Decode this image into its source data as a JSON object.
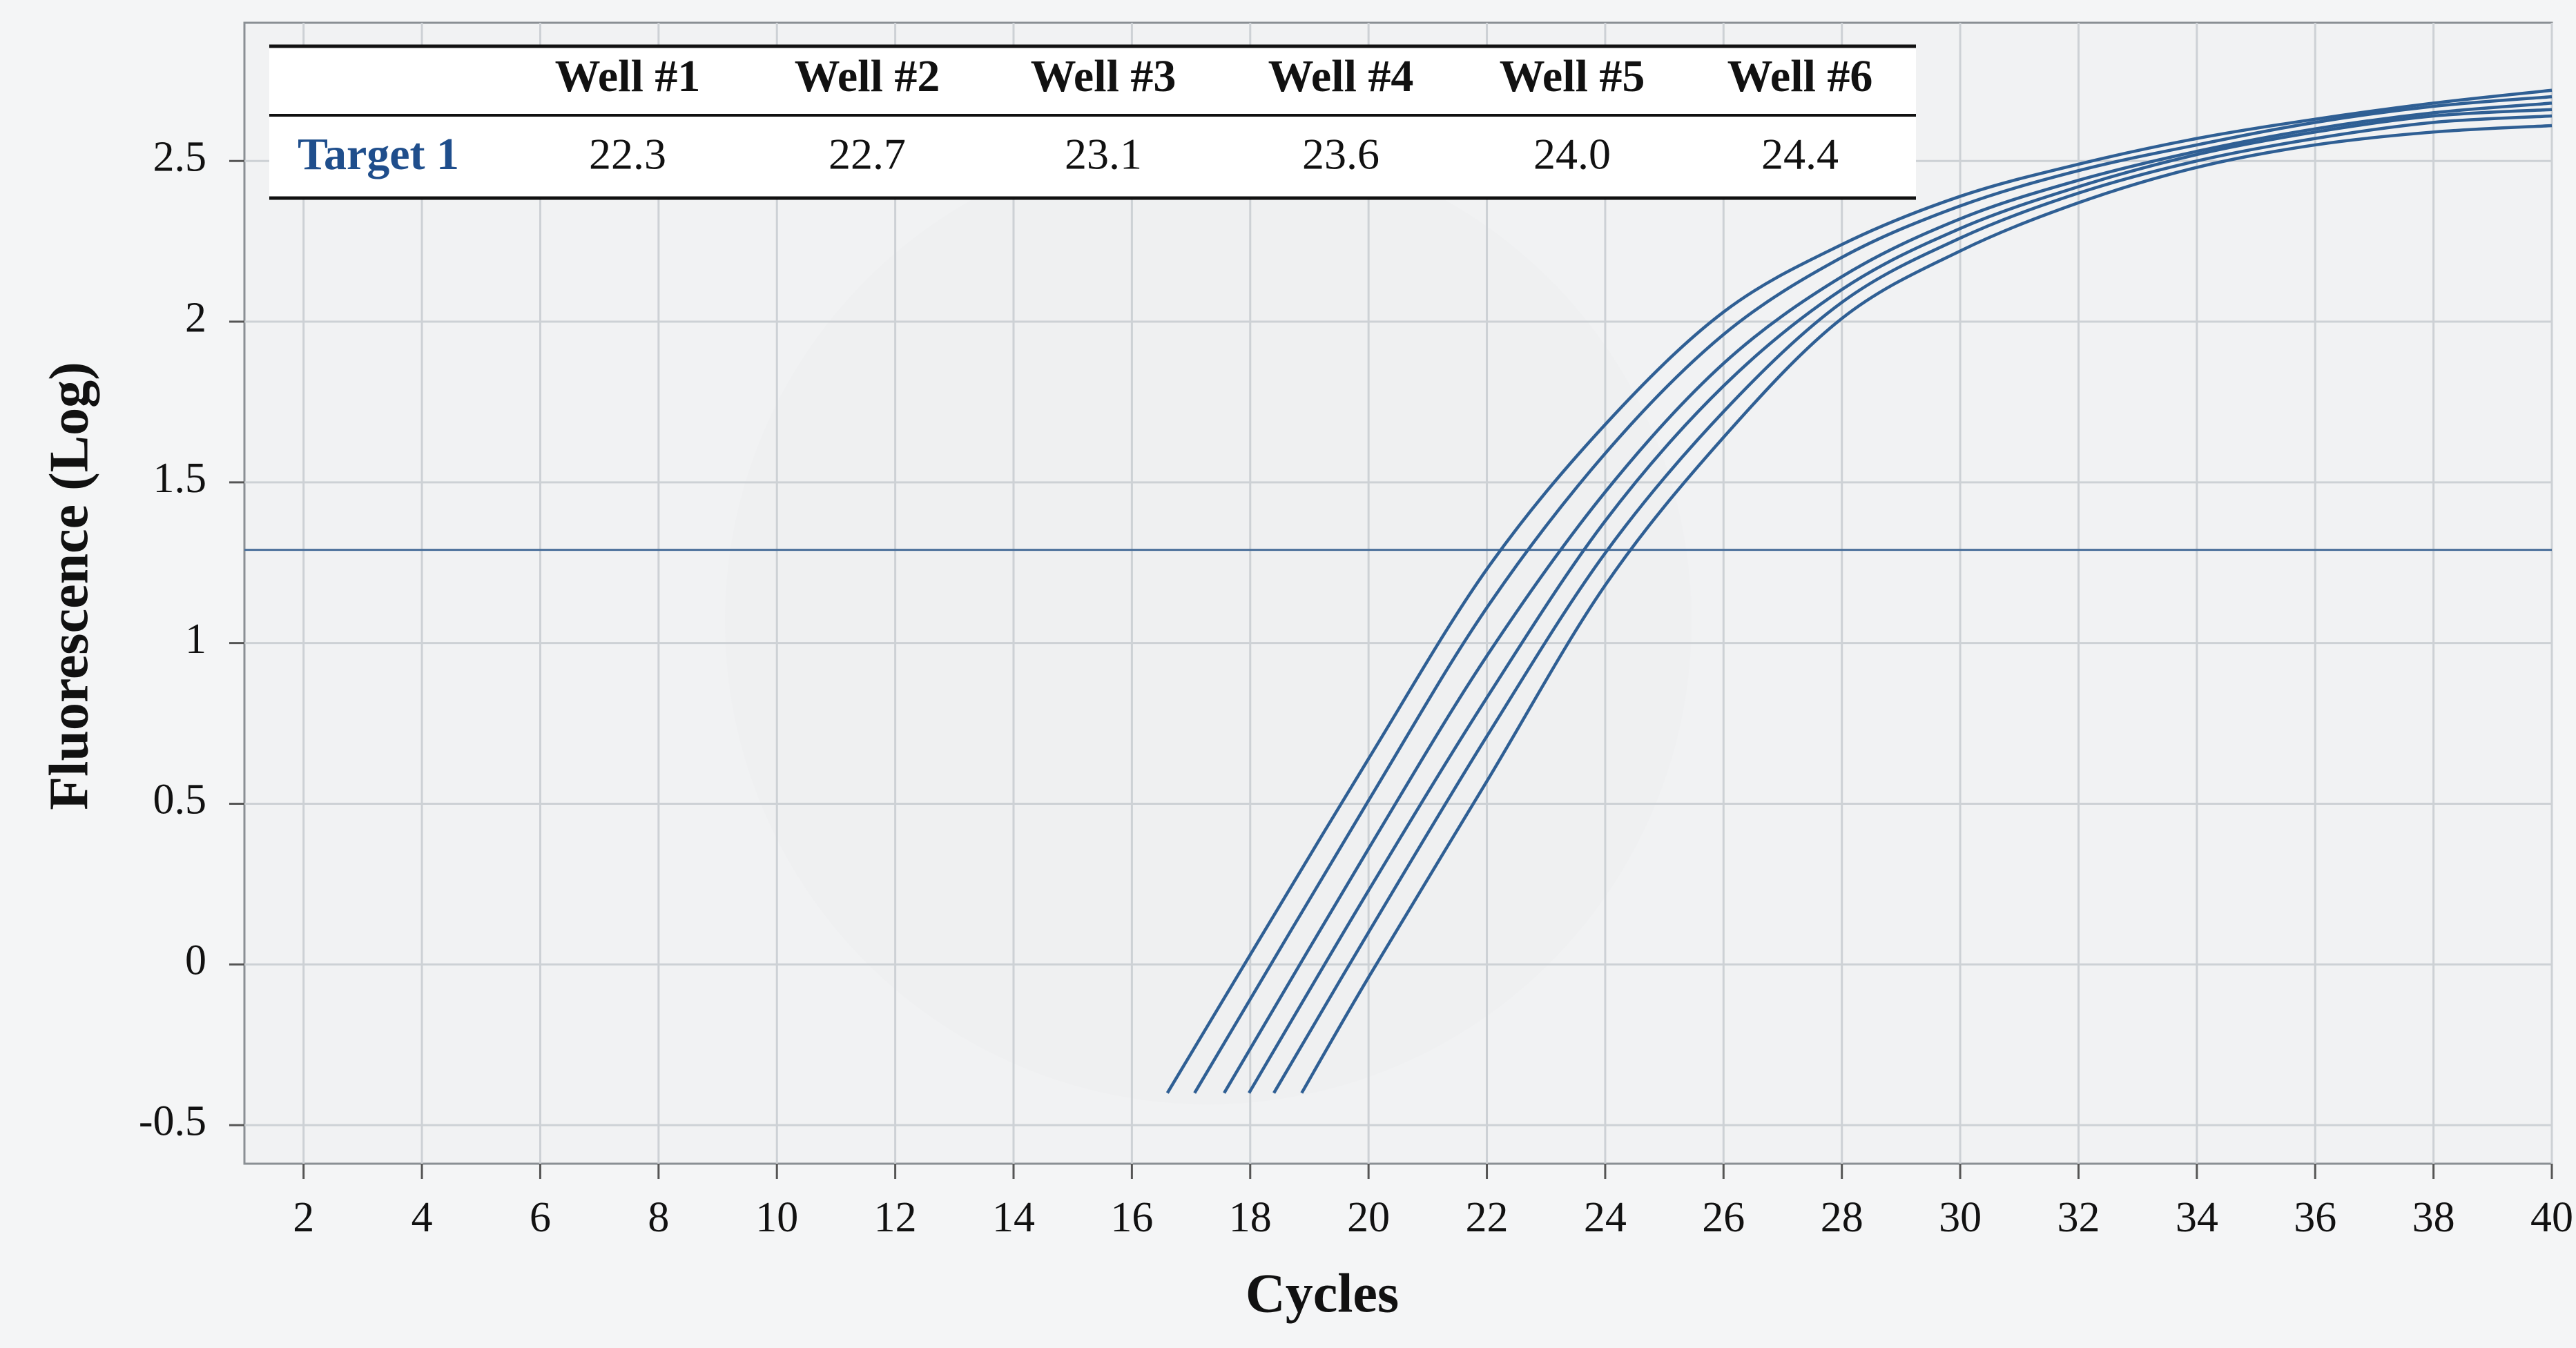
{
  "chart_data": {
    "type": "line",
    "x_label": "Cycles",
    "y_label": "Fluorescence (Log)",
    "xlim": [
      1,
      40
    ],
    "ylim": [
      -0.62,
      2.93
    ],
    "xticks": [
      2,
      4,
      6,
      8,
      10,
      12,
      14,
      16,
      18,
      20,
      22,
      24,
      26,
      28,
      30,
      32,
      34,
      36,
      38,
      40
    ],
    "yticks": [
      -0.5,
      0,
      0.5,
      1,
      1.5,
      2,
      2.5
    ],
    "grid": true,
    "threshold": 1.29,
    "threshold_color": "#4a6f9a",
    "series": [
      {
        "color": "#2f5f94",
        "x": [
          16.6,
          18,
          20,
          22,
          24,
          26,
          28,
          30,
          32,
          34,
          36,
          38,
          40
        ],
        "values": [
          -0.4,
          0.03,
          0.64,
          1.23,
          1.68,
          2.03,
          2.24,
          2.39,
          2.49,
          2.57,
          2.63,
          2.68,
          2.72
        ]
      },
      {
        "color": "#2f5f94",
        "x": [
          17.06,
          20,
          22,
          24,
          26,
          28,
          30,
          32,
          34,
          36,
          38,
          40
        ],
        "values": [
          -0.4,
          0.51,
          1.11,
          1.59,
          1.96,
          2.2,
          2.36,
          2.47,
          2.55,
          2.62,
          2.67,
          2.7
        ]
      },
      {
        "color": "#2f5f94",
        "x": [
          17.56,
          20,
          22,
          24,
          26,
          28,
          30,
          32,
          34,
          36,
          38,
          40
        ],
        "values": [
          -0.4,
          0.36,
          0.96,
          1.47,
          1.87,
          2.14,
          2.32,
          2.44,
          2.53,
          2.6,
          2.65,
          2.68
        ]
      },
      {
        "color": "#2f5f94",
        "x": [
          17.98,
          20,
          22,
          24,
          26,
          28,
          30,
          32,
          34,
          36,
          38,
          40
        ],
        "values": [
          -0.4,
          0.23,
          0.83,
          1.38,
          1.8,
          2.1,
          2.29,
          2.42,
          2.52,
          2.59,
          2.64,
          2.66
        ]
      },
      {
        "color": "#2f5f94",
        "x": [
          18.4,
          20,
          22,
          24,
          26,
          28,
          30,
          32,
          34,
          36,
          38,
          40
        ],
        "values": [
          -0.4,
          0.1,
          0.71,
          1.28,
          1.72,
          2.06,
          2.26,
          2.4,
          2.5,
          2.57,
          2.62,
          2.64
        ]
      },
      {
        "color": "#2f5f94",
        "x": [
          18.87,
          20,
          22,
          24,
          26,
          28,
          30,
          32,
          34,
          36,
          38,
          40
        ],
        "values": [
          -0.4,
          -0.04,
          0.57,
          1.18,
          1.64,
          2.01,
          2.22,
          2.37,
          2.48,
          2.55,
          2.59,
          2.61
        ]
      }
    ],
    "table": {
      "columns": [
        "Well #1",
        "Well #2",
        "Well #3",
        "Well #4",
        "Well #5",
        "Well #6"
      ],
      "rows": [
        {
          "label": "Target 1",
          "label_color": "#1f4e8c",
          "values": [
            "22.3",
            "22.7",
            "23.1",
            "23.6",
            "24.0",
            "24.4"
          ]
        }
      ]
    }
  }
}
